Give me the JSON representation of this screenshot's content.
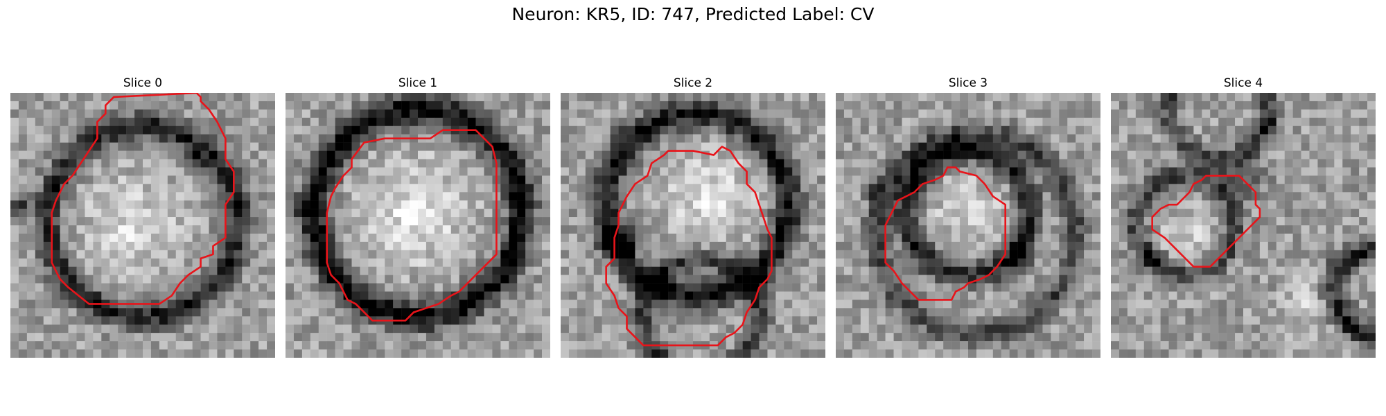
{
  "figure": {
    "title": "Neuron: KR5, ID: 747, Predicted Label: CV",
    "contour_color": "#e8141a"
  },
  "panels": [
    {
      "title": "Slice 0"
    },
    {
      "title": "Slice 1"
    },
    {
      "title": "Slice 2"
    },
    {
      "title": "Slice 3"
    },
    {
      "title": "Slice 4"
    }
  ]
}
